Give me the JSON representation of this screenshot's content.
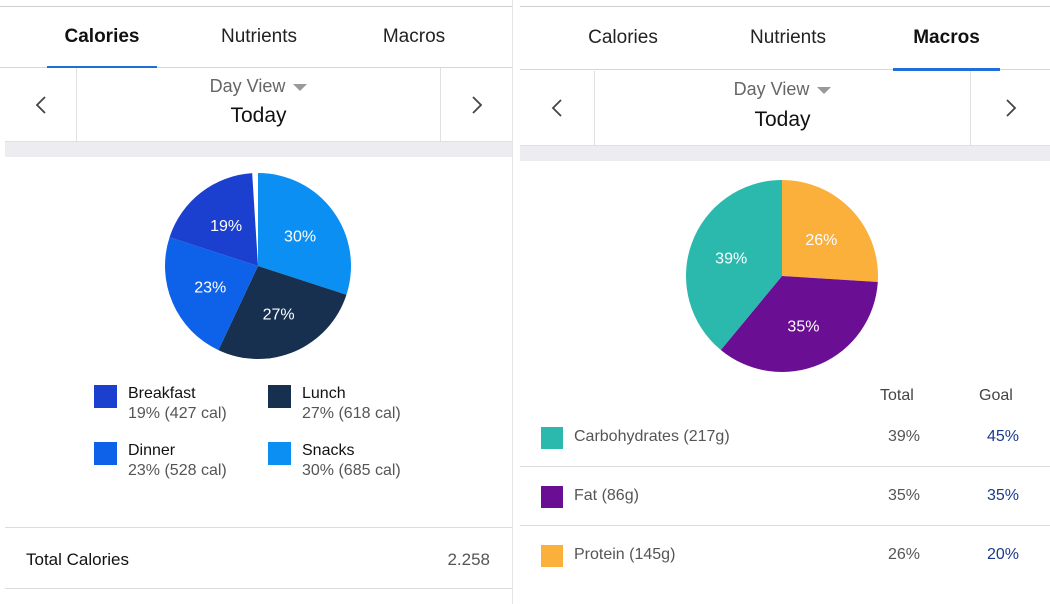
{
  "left": {
    "tabs": [
      {
        "label": "Calories",
        "active": true
      },
      {
        "label": "Nutrients",
        "active": false
      },
      {
        "label": "Macros",
        "active": false
      }
    ],
    "day_view_label": "Day View",
    "day_title": "Today",
    "chart_data": {
      "type": "pie",
      "slices": [
        {
          "label": "Snacks",
          "percent": 30,
          "color": "#0b8ff2"
        },
        {
          "label": "Lunch",
          "percent": 27,
          "color": "#17304f"
        },
        {
          "label": "Dinner",
          "percent": 23,
          "color": "#0e62ea"
        },
        {
          "label": "Breakfast",
          "percent": 19,
          "color": "#1b3fcf"
        }
      ],
      "slice_labels": [
        "30%",
        "27%",
        "23%",
        "19%"
      ]
    },
    "legend": [
      {
        "name": "Breakfast",
        "detail": "19% (427 cal)",
        "color": "#1b3fcf"
      },
      {
        "name": "Lunch",
        "detail": "27% (618 cal)",
        "color": "#17304f"
      },
      {
        "name": "Dinner",
        "detail": "23% (528 cal)",
        "color": "#0e62ea"
      },
      {
        "name": "Snacks",
        "detail": "30% (685 cal)",
        "color": "#0b8ff2"
      }
    ],
    "total": {
      "label": "Total Calories",
      "value": "2.258"
    }
  },
  "right": {
    "tabs": [
      {
        "label": "Calories",
        "active": false
      },
      {
        "label": "Nutrients",
        "active": false
      },
      {
        "label": "Macros",
        "active": true
      }
    ],
    "day_view_label": "Day View",
    "day_title": "Today",
    "chart_data": {
      "type": "pie",
      "slices": [
        {
          "label": "Protein",
          "percent": 26,
          "color": "#fbb03c"
        },
        {
          "label": "Fat",
          "percent": 35,
          "color": "#6a0e94"
        },
        {
          "label": "Carbohydrates",
          "percent": 39,
          "color": "#2bb9ae"
        }
      ],
      "slice_labels": [
        "26%",
        "35%",
        "39%"
      ]
    },
    "columns": {
      "total": "Total",
      "goal": "Goal"
    },
    "macros": [
      {
        "name": "Carbohydrates (217g)",
        "total": "39%",
        "goal": "45%",
        "color": "#2bb9ae"
      },
      {
        "name": "Fat (86g)",
        "total": "35%",
        "goal": "35%",
        "color": "#6a0e94"
      },
      {
        "name": "Protein (145g)",
        "total": "26%",
        "goal": "20%",
        "color": "#fbb03c"
      }
    ]
  },
  "icons": {
    "prev": "chevron-left-icon",
    "next": "chevron-right-icon",
    "dropdown": "caret-down-icon"
  }
}
